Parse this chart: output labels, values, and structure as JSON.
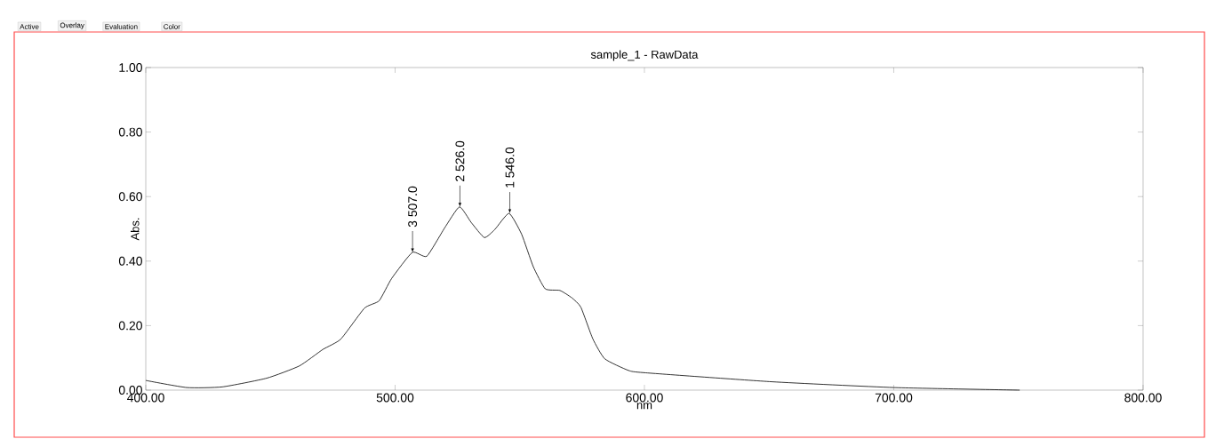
{
  "chart_data": {
    "type": "line",
    "title": "sample_1 - RawData",
    "xlabel": "nm",
    "ylabel": "Abs.",
    "x": [
      400,
      416.4,
      430.7,
      448.5,
      461.6,
      471,
      478.2,
      487.7,
      493.6,
      498.6,
      506.9,
      512.7,
      519.8,
      525.8,
      530.5,
      535.8,
      540,
      545.7,
      550.7,
      555.4,
      560.2,
      566.1,
      570.9,
      574.5,
      579.3,
      584.1,
      593.6,
      600,
      651,
      700,
      750.5
    ],
    "values": [
      0.03,
      0.008,
      0.01,
      0.037,
      0.075,
      0.126,
      0.158,
      0.254,
      0.277,
      0.346,
      0.427,
      0.415,
      0.502,
      0.568,
      0.52,
      0.473,
      0.498,
      0.548,
      0.484,
      0.383,
      0.314,
      0.309,
      0.286,
      0.257,
      0.159,
      0.097,
      0.061,
      0.054,
      0.026,
      0.008,
      0.0
    ],
    "color": "#000000",
    "xlim": [
      400,
      800
    ],
    "ylim": [
      0,
      1
    ],
    "xticks": [
      {
        "value": 400,
        "label": "400.00"
      },
      {
        "value": 500,
        "label": "500.00"
      },
      {
        "value": 600,
        "label": "600.00"
      },
      {
        "value": 700,
        "label": "700.00"
      },
      {
        "value": 800,
        "label": "800.00"
      }
    ],
    "yticks": [
      {
        "value": 0,
        "label": "0.00"
      },
      {
        "value": 0.2,
        "label": "0.20"
      },
      {
        "value": 0.4,
        "label": "0.40"
      },
      {
        "value": 0.6,
        "label": "0.60"
      },
      {
        "value": 0.8,
        "label": "0.80"
      },
      {
        "value": 1,
        "label": "1.00"
      }
    ],
    "grid": false,
    "annotations": [
      {
        "text": "3  507.0",
        "x": 507,
        "y": 0.427
      },
      {
        "text": "2  526.0",
        "x": 526,
        "y": 0.568
      },
      {
        "text": "1  546.0",
        "x": 546,
        "y": 0.548
      },
      "Active",
      "Overlay",
      "Evaluation",
      "Color"
    ]
  }
}
